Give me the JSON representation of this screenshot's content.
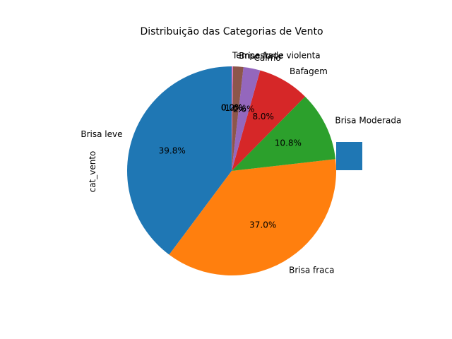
{
  "chart_data": {
    "type": "pie",
    "title": "Distribuição das Categorias de Vento",
    "ylabel": "cat_vento",
    "slices": [
      {
        "label": "Brisa leve",
        "value": 39.8,
        "pct_label": "39.8%",
        "color": "#1f77b4"
      },
      {
        "label": "Brisa fraca",
        "value": 37.0,
        "pct_label": "37.0%",
        "color": "#ff7f0e"
      },
      {
        "label": "Brisa Moderada",
        "value": 10.8,
        "pct_label": "10.8%",
        "color": "#2ca02c"
      },
      {
        "label": "Bafagem",
        "value": 8.0,
        "pct_label": "8.0%",
        "color": "#d62728"
      },
      {
        "label": "Calmo",
        "value": 2.6,
        "pct_label": "2.6%",
        "color": "#9467bd"
      },
      {
        "label": "Brisa forte",
        "value": 1.6,
        "pct_label": "1.6%",
        "color": "#8c564b"
      },
      {
        "label": "Tempestade violenta",
        "value": 0.2,
        "pct_label": "0.2%",
        "color": "#e377c2"
      },
      {
        "label": "",
        "value": 0.0,
        "pct_label": "0.0%",
        "color": "#7f7f7f"
      }
    ],
    "legend": {
      "color": "#1f77b4"
    }
  }
}
